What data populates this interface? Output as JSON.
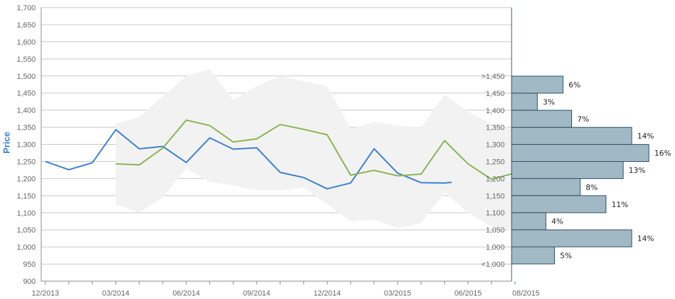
{
  "chart_data": {
    "type": "line",
    "ylabel": "Price",
    "ylim": [
      900,
      1700
    ],
    "y_ticks": [
      "900",
      "950",
      "1,000",
      "1,050",
      "1,100",
      "1,150",
      "1,200",
      "1,250",
      "1,300",
      "1,350",
      "1,400",
      "1,450",
      "1,500",
      "1,550",
      "1,600",
      "1,650",
      "1,700"
    ],
    "x_ticks": [
      "12/2013",
      "03/2014",
      "06/2014",
      "09/2014",
      "12/2014",
      "03/2015",
      "06/2015",
      "08/2015"
    ],
    "band": {
      "color": "#f2f2f2",
      "upper": [
        [
          3,
          1360
        ],
        [
          4,
          1380
        ],
        [
          6,
          1500
        ],
        [
          7,
          1520
        ],
        [
          8,
          1430
        ],
        [
          9,
          1470
        ],
        [
          10,
          1500
        ],
        [
          12,
          1470
        ],
        [
          13,
          1345
        ],
        [
          14,
          1365
        ],
        [
          15,
          1355
        ],
        [
          16,
          1350
        ],
        [
          17,
          1445
        ],
        [
          18,
          1395
        ],
        [
          19,
          1360
        ],
        [
          20.3,
          1340
        ]
      ],
      "lower": [
        [
          20.3,
          1040
        ],
        [
          19,
          1060
        ],
        [
          18,
          1100
        ],
        [
          17,
          1160
        ],
        [
          16,
          1070
        ],
        [
          15,
          1055
        ],
        [
          14,
          1080
        ],
        [
          13,
          1075
        ],
        [
          12,
          1125
        ],
        [
          11,
          1175
        ],
        [
          10,
          1165
        ],
        [
          9,
          1165
        ],
        [
          8,
          1180
        ],
        [
          7,
          1190
        ],
        [
          6,
          1230
        ],
        [
          5,
          1145
        ],
        [
          4,
          1100
        ],
        [
          3,
          1125
        ]
      ]
    },
    "series": [
      {
        "color": "#3a7fcf",
        "points": [
          [
            0,
            1250
          ],
          [
            1,
            1226
          ],
          [
            2,
            1246
          ],
          [
            3,
            1343
          ],
          [
            4,
            1287
          ],
          [
            5,
            1294
          ],
          [
            6,
            1247
          ],
          [
            7,
            1319
          ],
          [
            8,
            1286
          ],
          [
            9,
            1290
          ],
          [
            10,
            1218
          ],
          [
            11,
            1203
          ],
          [
            12,
            1170
          ],
          [
            13,
            1187
          ],
          [
            14,
            1287
          ],
          [
            15,
            1216
          ],
          [
            16,
            1188
          ],
          [
            17,
            1187
          ],
          [
            17.3,
            1189
          ]
        ]
      },
      {
        "color": "#8ab34f",
        "points": [
          [
            3,
            1243
          ],
          [
            4,
            1240
          ],
          [
            5,
            1289
          ],
          [
            6,
            1371
          ],
          [
            7,
            1355
          ],
          [
            8,
            1307
          ],
          [
            9,
            1316
          ],
          [
            10,
            1358
          ],
          [
            11,
            1344
          ],
          [
            12,
            1328
          ],
          [
            13,
            1210
          ],
          [
            14,
            1224
          ],
          [
            15,
            1208
          ],
          [
            16,
            1213
          ],
          [
            17,
            1311
          ],
          [
            18,
            1243
          ],
          [
            19,
            1198
          ],
          [
            20.3,
            1222
          ]
        ]
      }
    ],
    "histogram": {
      "color": "#a1b8c5",
      "edge_color": "#2f4f5f",
      "bins": [
        {
          "label": ">1,450",
          "percent": 6,
          "text": "6%"
        },
        {
          "label": "1,450",
          "percent": 3,
          "text": "3%"
        },
        {
          "label": "1,400",
          "percent": 7,
          "text": "7%"
        },
        {
          "label": "1,350",
          "percent": 14,
          "text": "14%"
        },
        {
          "label": "1,300",
          "percent": 16,
          "text": "16%"
        },
        {
          "label": "1,250",
          "percent": 13,
          "text": "13%"
        },
        {
          "label": "1,200",
          "percent": 8,
          "text": "8%"
        },
        {
          "label": "1,150",
          "percent": 11,
          "text": "11%"
        },
        {
          "label": "1,100",
          "percent": 4,
          "text": "4%"
        },
        {
          "label": "1,050",
          "percent": 14,
          "text": "14%"
        },
        {
          "label": "1,000",
          "percent": 5,
          "text": "5%"
        },
        {
          "label": "<1,000",
          "percent": null,
          "text": ""
        }
      ]
    }
  }
}
